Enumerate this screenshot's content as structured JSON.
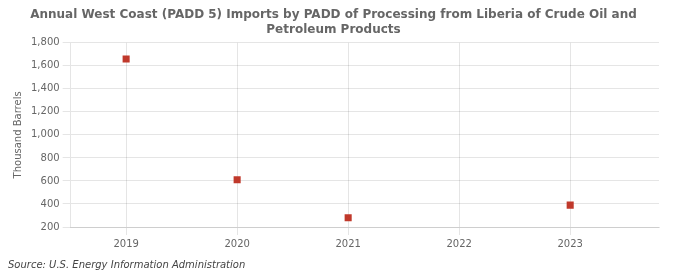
{
  "chart_data": {
    "type": "scatter",
    "title": "Annual West Coast (PADD 5) Imports by PADD of Processing from Liberia of Crude Oil and\nPetroleum Products",
    "ylabel": "Thousand Barrels",
    "source": "Source: U.S. Energy Information Administration",
    "x": [
      2019,
      2020,
      2021,
      2023
    ],
    "values": [
      1660,
      610,
      280,
      390
    ],
    "color": "#c0392b",
    "marker": "square",
    "xlim": [
      2018.5,
      2023.8
    ],
    "xticks": [
      2019,
      2020,
      2021,
      2022,
      2023
    ],
    "ylim": [
      200,
      1800
    ],
    "yticks": [
      200,
      400,
      600,
      800,
      {
        "value": 1000,
        "label": "1,000"
      },
      {
        "value": 1200,
        "label": "1,200"
      },
      {
        "value": 1400,
        "label": "1,400"
      },
      {
        "value": 1600,
        "label": "1,600"
      },
      {
        "value": 1800,
        "label": "1,800"
      }
    ],
    "grid": true
  }
}
